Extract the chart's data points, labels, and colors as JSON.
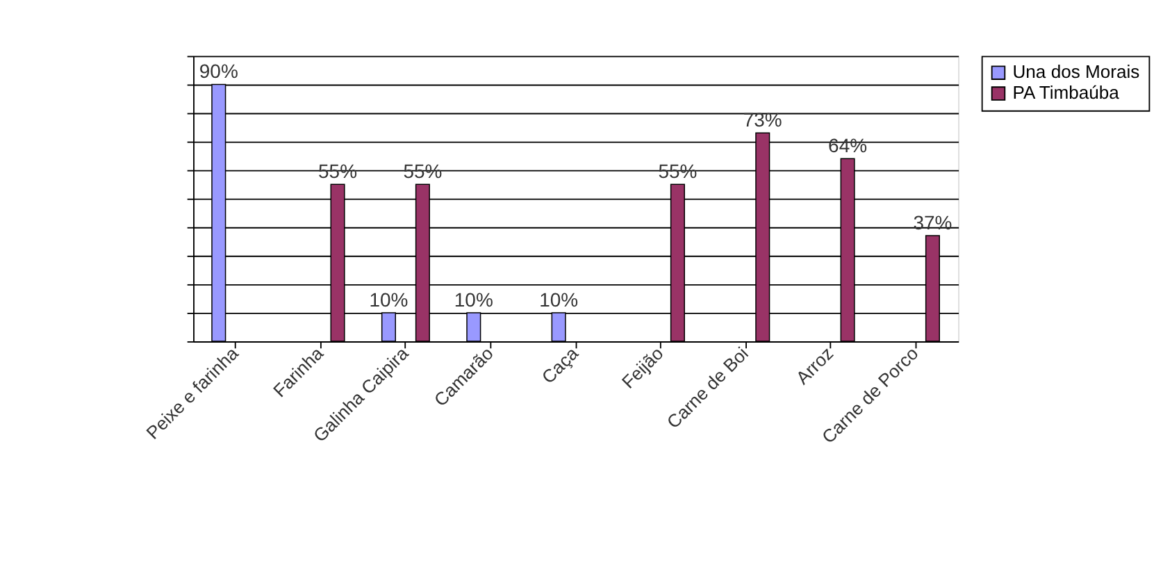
{
  "chart_data": {
    "type": "bar",
    "categories": [
      "Peixe e farinha",
      "Farinha",
      "Galinha Caipira",
      "Camarão",
      "Caça",
      "Feijão",
      "Carne de Boi",
      "Arroz",
      "Carne de Porco"
    ],
    "series": [
      {
        "name": "Una dos Morais",
        "color": "#9999ff",
        "values": [
          90,
          null,
          10,
          10,
          10,
          null,
          null,
          null,
          null
        ],
        "value_labels": [
          "90%",
          null,
          "10%",
          "10%",
          "10%",
          null,
          null,
          null,
          null
        ]
      },
      {
        "name": "PA Timbaúba",
        "color": "#993366",
        "values": [
          null,
          55,
          55,
          null,
          null,
          55,
          73,
          64,
          37
        ],
        "value_labels": [
          null,
          "55%",
          "55%",
          null,
          null,
          "55%",
          "73%",
          "64%",
          "37%"
        ]
      }
    ],
    "ylim": [
      0,
      100
    ],
    "yticks": [
      {
        "value": 0,
        "label": null
      },
      {
        "value": 10,
        "label": null
      },
      {
        "value": 20,
        "label": null
      },
      {
        "value": 30,
        "label": null
      },
      {
        "value": 40,
        "label": null
      },
      {
        "value": 50,
        "label": null
      },
      {
        "value": 60,
        "label": null
      },
      {
        "value": 70,
        "label": null
      },
      {
        "value": 80,
        "label": null
      },
      {
        "value": 90,
        "label": null
      },
      {
        "value": 100,
        "label": null
      }
    ],
    "tick_labels": "x",
    "grid": "y",
    "legend": "right"
  }
}
